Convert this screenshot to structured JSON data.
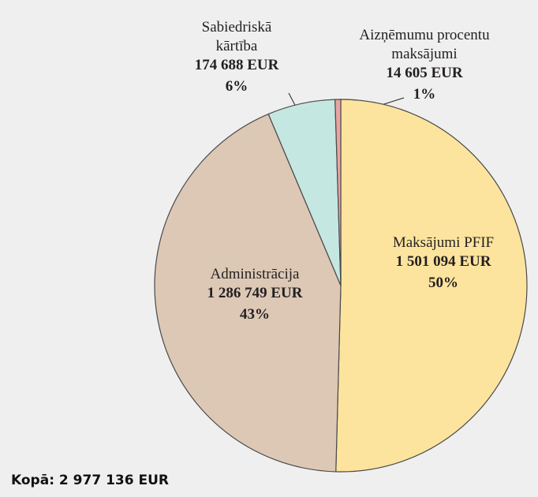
{
  "chart_data": {
    "type": "pie",
    "categories": [
      [
        "Maksājumi PFIF"
      ],
      [
        "Administrācija"
      ],
      [
        "Sabiedriskā",
        "kārtība"
      ],
      [
        "Aizņēmumu procentu",
        "maksājumi"
      ]
    ],
    "values": [
      1501094,
      1286749,
      174688,
      14605
    ],
    "value_labels": [
      "1 501 094 EUR",
      "1 286 749 EUR",
      "174 688 EUR",
      "14 605 EUR"
    ],
    "percent_labels": [
      "50%",
      "43%",
      "6%",
      "1%"
    ],
    "colors": [
      "#fde49e",
      "#dcc8b5",
      "#c5e7e1",
      "#e9a3a3"
    ],
    "footer": "Kopā: 2 977 136 EUR"
  }
}
